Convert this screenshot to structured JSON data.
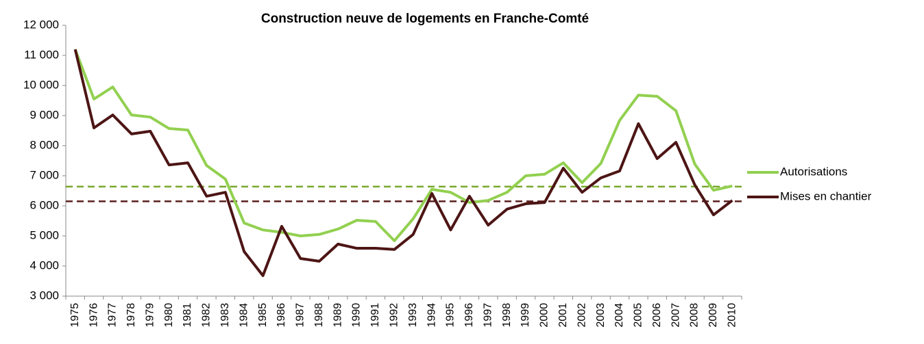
{
  "chart_data": {
    "type": "line",
    "title": "Construction neuve de logements en Franche-Comté",
    "categories": [
      "1975",
      "1976",
      "1977",
      "1978",
      "1979",
      "1980",
      "1981",
      "1982",
      "1983",
      "1984",
      "1985",
      "1986",
      "1987",
      "1988",
      "1989",
      "1990",
      "1991",
      "1992",
      "1993",
      "1994",
      "1995",
      "1996",
      "1997",
      "1998",
      "1999",
      "2000",
      "2001",
      "2002",
      "2003",
      "2004",
      "2005",
      "2006",
      "2007",
      "2008",
      "2009",
      "2010"
    ],
    "series": [
      {
        "name": "Autorisations",
        "color": "#92d050",
        "values": [
          11200,
          9550,
          9950,
          9020,
          8950,
          8570,
          8520,
          7340,
          6890,
          5430,
          5200,
          5120,
          5000,
          5050,
          5230,
          5520,
          5480,
          4840,
          5570,
          6550,
          6450,
          6110,
          6180,
          6450,
          7000,
          7050,
          7430,
          6770,
          7410,
          8840,
          9680,
          9640,
          9160,
          7390,
          6520,
          6660
        ]
      },
      {
        "name": "Mises en chantier",
        "color": "#4d1515",
        "values": [
          11200,
          8590,
          9020,
          8390,
          8480,
          7360,
          7430,
          6320,
          6450,
          4480,
          3680,
          5320,
          4250,
          4160,
          4730,
          4590,
          4590,
          4550,
          5050,
          6410,
          5200,
          6320,
          5360,
          5890,
          6070,
          6110,
          7250,
          6450,
          6930,
          7160,
          8730,
          7570,
          8110,
          6700,
          5700,
          6180
        ]
      }
    ],
    "reference_lines": [
      {
        "value": 6640,
        "color": "#77a82c"
      },
      {
        "value": 6150,
        "color": "#5a1e1e"
      }
    ],
    "ylim": [
      3000,
      12000
    ],
    "yticks": [
      {
        "value": 3000,
        "label": "3 000"
      },
      {
        "value": 4000,
        "label": "4 000"
      },
      {
        "value": 5000,
        "label": "5 000"
      },
      {
        "value": 6000,
        "label": "6 000"
      },
      {
        "value": 7000,
        "label": "7 000"
      },
      {
        "value": 8000,
        "label": "8 000"
      },
      {
        "value": 9000,
        "label": "9 000"
      },
      {
        "value": 10000,
        "label": "10 000"
      },
      {
        "value": 11000,
        "label": "11 000"
      },
      {
        "value": 12000,
        "label": "12 000"
      }
    ],
    "legend": "right"
  }
}
